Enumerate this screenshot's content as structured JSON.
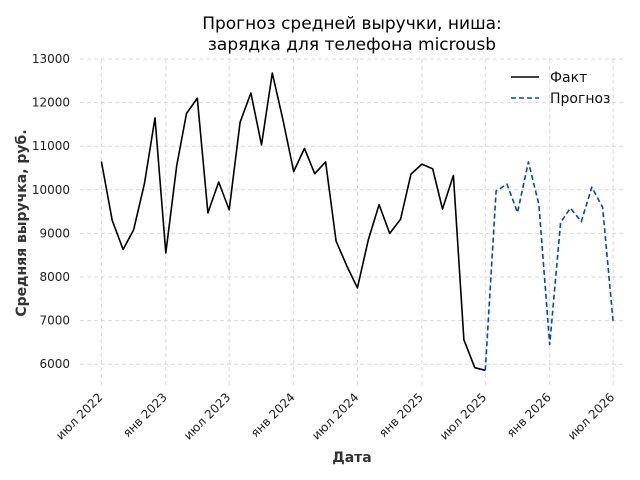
{
  "chart_data": {
    "type": "line",
    "title_lines": [
      "Прогноз средней выручки, ниша:",
      "зарядка для телефона microusb"
    ],
    "xlabel": "Дата",
    "ylabel": "Средняя выручка, руб.",
    "ylim": [
      5500,
      13000
    ],
    "yticks": [
      6000,
      7000,
      8000,
      9000,
      10000,
      11000,
      12000,
      13000
    ],
    "xlim": [
      "2022-05-01",
      "2026-08-01"
    ],
    "xticks": [
      {
        "date": "2022-07-01",
        "label": "июл 2022"
      },
      {
        "date": "2023-01-01",
        "label": "янв 2023"
      },
      {
        "date": "2023-07-01",
        "label": "июл 2023"
      },
      {
        "date": "2024-01-01",
        "label": "янв 2024"
      },
      {
        "date": "2024-07-01",
        "label": "июл 2024"
      },
      {
        "date": "2025-01-01",
        "label": "янв 2025"
      },
      {
        "date": "2025-07-01",
        "label": "июл 2025"
      },
      {
        "date": "2026-01-01",
        "label": "янв 2026"
      },
      {
        "date": "2026-07-01",
        "label": "июл 2026"
      }
    ],
    "grid": true,
    "legend_position": "top-right",
    "series": [
      {
        "name": "Факт",
        "color": "#000000",
        "style": "solid",
        "points": [
          {
            "x": "2022-07-01",
            "y": 10650
          },
          {
            "x": "2022-08-01",
            "y": 9300
          },
          {
            "x": "2022-09-01",
            "y": 8630
          },
          {
            "x": "2022-10-01",
            "y": 9080
          },
          {
            "x": "2022-11-01",
            "y": 10150
          },
          {
            "x": "2022-12-01",
            "y": 11650
          },
          {
            "x": "2023-01-01",
            "y": 8550
          },
          {
            "x": "2023-02-01",
            "y": 10550
          },
          {
            "x": "2023-03-01",
            "y": 11750
          },
          {
            "x": "2023-04-01",
            "y": 12100
          },
          {
            "x": "2023-05-01",
            "y": 9470
          },
          {
            "x": "2023-06-01",
            "y": 10180
          },
          {
            "x": "2023-07-01",
            "y": 9540
          },
          {
            "x": "2023-08-01",
            "y": 11550
          },
          {
            "x": "2023-09-01",
            "y": 12220
          },
          {
            "x": "2023-10-01",
            "y": 11030
          },
          {
            "x": "2023-11-01",
            "y": 12680
          },
          {
            "x": "2023-12-01",
            "y": 11620
          },
          {
            "x": "2024-01-01",
            "y": 10420
          },
          {
            "x": "2024-02-01",
            "y": 10950
          },
          {
            "x": "2024-03-01",
            "y": 10370
          },
          {
            "x": "2024-04-01",
            "y": 10640
          },
          {
            "x": "2024-05-01",
            "y": 8820
          },
          {
            "x": "2024-06-01",
            "y": 8250
          },
          {
            "x": "2024-07-01",
            "y": 7750
          },
          {
            "x": "2024-08-01",
            "y": 8850
          },
          {
            "x": "2024-09-01",
            "y": 9660
          },
          {
            "x": "2024-10-01",
            "y": 9000
          },
          {
            "x": "2024-11-01",
            "y": 9320
          },
          {
            "x": "2024-12-01",
            "y": 10360
          },
          {
            "x": "2025-01-01",
            "y": 10590
          },
          {
            "x": "2025-02-01",
            "y": 10480
          },
          {
            "x": "2025-03-01",
            "y": 9560
          },
          {
            "x": "2025-04-01",
            "y": 10330
          },
          {
            "x": "2025-05-01",
            "y": 6560
          },
          {
            "x": "2025-06-01",
            "y": 5920
          },
          {
            "x": "2025-07-01",
            "y": 5860
          }
        ]
      },
      {
        "name": "Прогноз",
        "color": "#0044cc",
        "style": "dashed",
        "points": [
          {
            "x": "2025-07-01",
            "y": 5860
          },
          {
            "x": "2025-08-01",
            "y": 9970
          },
          {
            "x": "2025-09-01",
            "y": 10130
          },
          {
            "x": "2025-10-01",
            "y": 9480
          },
          {
            "x": "2025-11-01",
            "y": 10640
          },
          {
            "x": "2025-12-01",
            "y": 9660
          },
          {
            "x": "2026-01-01",
            "y": 6450
          },
          {
            "x": "2026-02-01",
            "y": 9250
          },
          {
            "x": "2026-03-01",
            "y": 9580
          },
          {
            "x": "2026-04-01",
            "y": 9270
          },
          {
            "x": "2026-05-01",
            "y": 10060
          },
          {
            "x": "2026-06-01",
            "y": 9600
          },
          {
            "x": "2026-07-01",
            "y": 6980
          }
        ]
      }
    ]
  }
}
